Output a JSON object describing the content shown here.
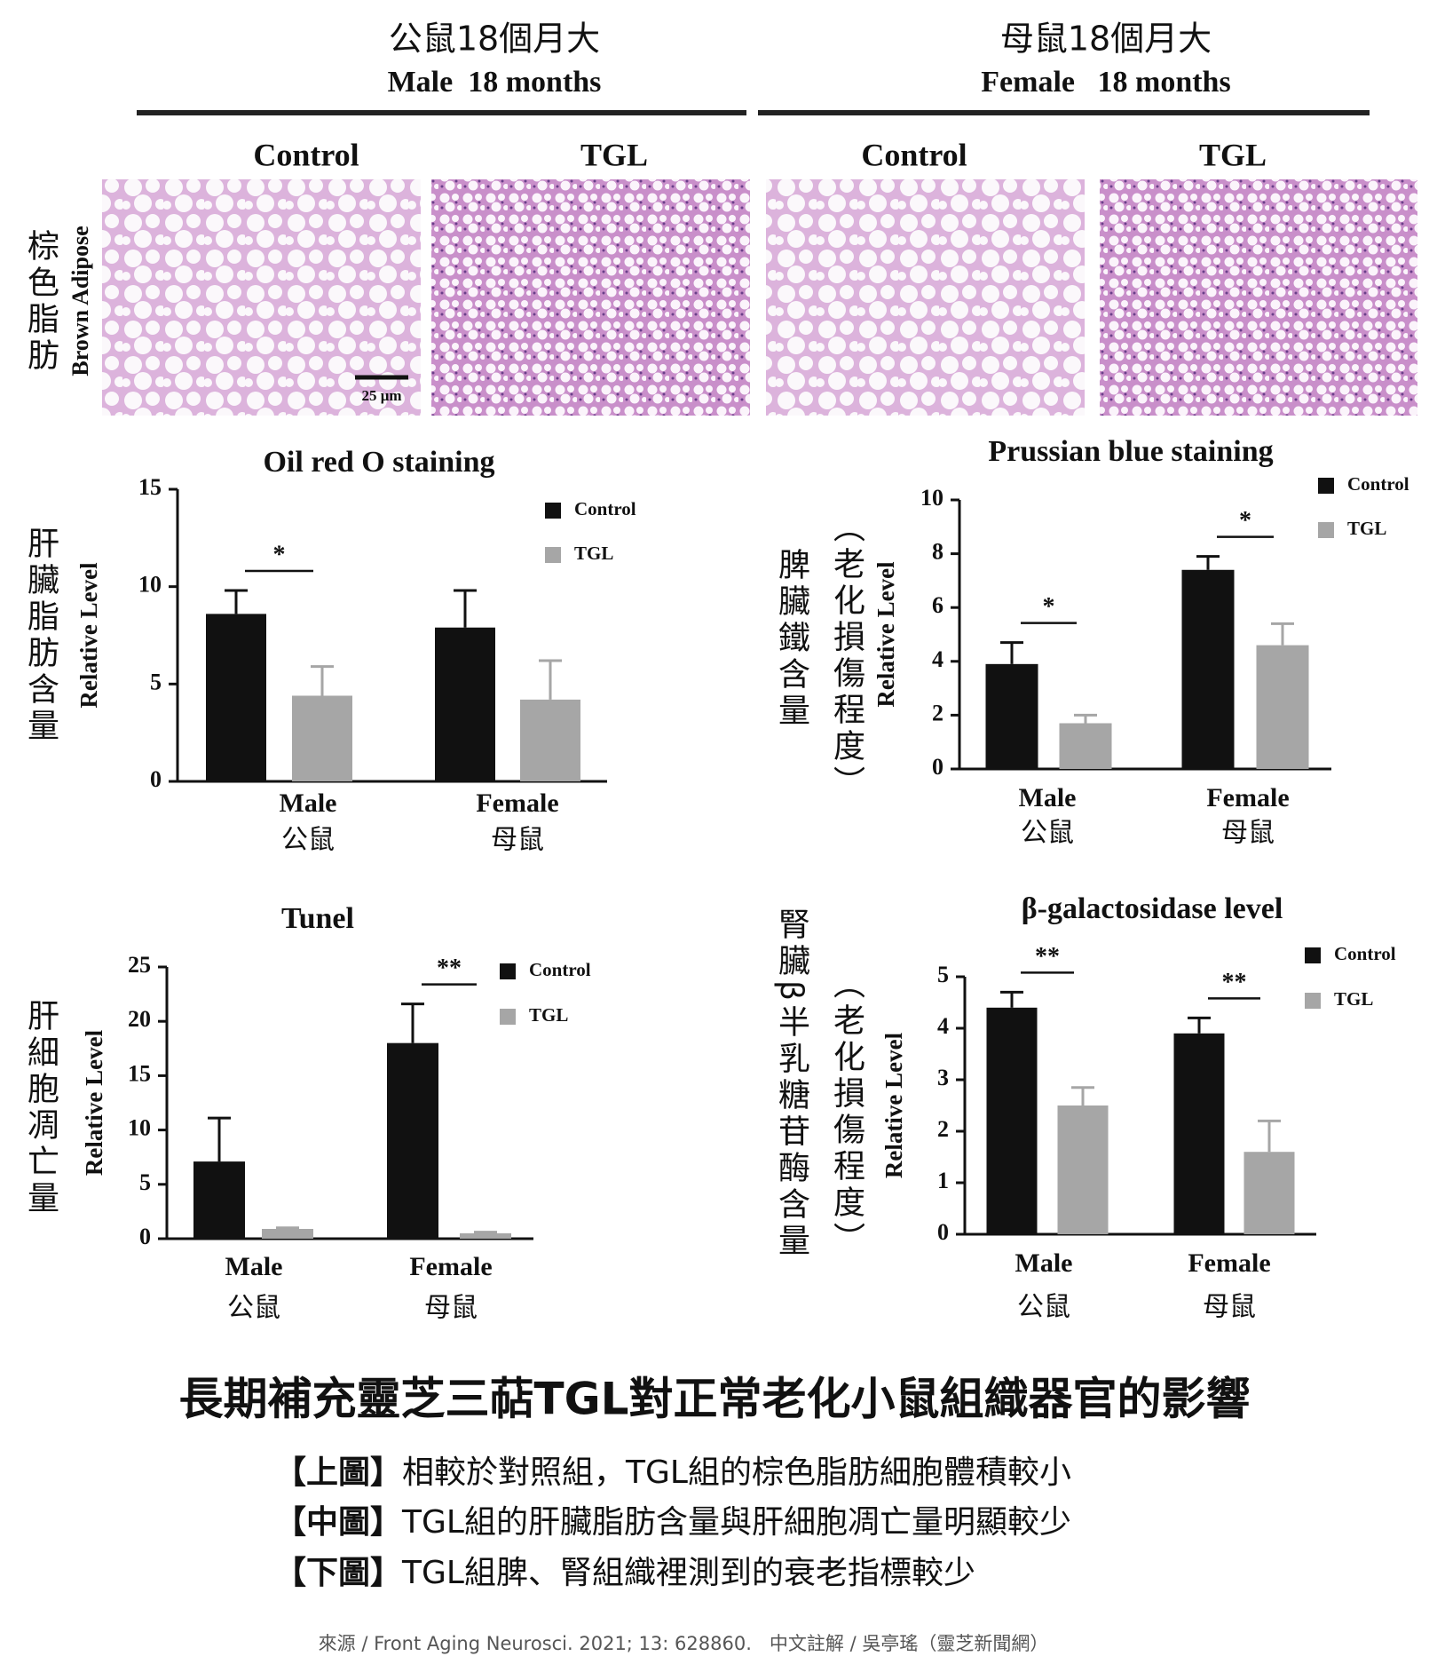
{
  "header": {
    "left": {
      "zh": "公鼠18個月大",
      "en": "Male  18 months",
      "groups": [
        "Control",
        "TGL"
      ]
    },
    "right": {
      "zh": "母鼠18個月大",
      "en": "Female   18 months",
      "groups": [
        "Control",
        "TGL"
      ]
    }
  },
  "histology": {
    "row_label": "棕色脂肪",
    "axis_label": "Brown Adipose",
    "scale_bar": "25 μm"
  },
  "chart_data": [
    {
      "type": "bar",
      "title": "Oil red O staining",
      "side_labels": [
        "肝臟脂肪含量"
      ],
      "ylabel": "Relative Level",
      "categories": [
        "Male",
        "Female"
      ],
      "categories_zh": [
        "公鼠",
        "母鼠"
      ],
      "series": [
        {
          "name": "Control",
          "color": "#111111",
          "values": [
            8.6,
            7.9
          ],
          "errors": [
            1.2,
            1.9
          ]
        },
        {
          "name": "TGL",
          "color": "#a6a6a6",
          "values": [
            4.4,
            4.2
          ],
          "errors": [
            1.5,
            2.0
          ]
        }
      ],
      "ylim": [
        0,
        15
      ],
      "yticks": [
        0,
        5,
        10,
        15
      ],
      "significance": [
        {
          "category": 0,
          "label": "*"
        }
      ]
    },
    {
      "type": "bar",
      "title": "Prussian blue staining",
      "side_labels": [
        "脾臟鐵含量",
        "（老化損傷程度）"
      ],
      "ylabel": "Relative Level",
      "categories": [
        "Male",
        "Female"
      ],
      "categories_zh": [
        "公鼠",
        "母鼠"
      ],
      "series": [
        {
          "name": "Control",
          "color": "#111111",
          "values": [
            3.9,
            7.4
          ],
          "errors": [
            0.8,
            0.5
          ]
        },
        {
          "name": "TGL",
          "color": "#a6a6a6",
          "values": [
            1.7,
            4.6
          ],
          "errors": [
            0.3,
            0.8
          ]
        }
      ],
      "ylim": [
        0,
        10
      ],
      "yticks": [
        0,
        2,
        4,
        6,
        8,
        10
      ],
      "significance": [
        {
          "category": 0,
          "label": "*"
        },
        {
          "category": 1,
          "label": "*"
        }
      ]
    },
    {
      "type": "bar",
      "title": "Tunel",
      "side_labels": [
        "肝細胞凋亡量"
      ],
      "ylabel": "Relative Level",
      "categories": [
        "Male",
        "Female"
      ],
      "categories_zh": [
        "公鼠",
        "母鼠"
      ],
      "series": [
        {
          "name": "Control",
          "color": "#111111",
          "values": [
            7.1,
            18
          ],
          "errors": [
            4.0,
            3.6
          ]
        },
        {
          "name": "TGL",
          "color": "#a6a6a6",
          "values": [
            0.9,
            0.5
          ],
          "errors": [
            0.1,
            0.1
          ]
        }
      ],
      "ylim": [
        0,
        25
      ],
      "yticks": [
        0,
        5,
        10,
        15,
        20,
        25
      ],
      "significance": [
        {
          "category": 1,
          "label": "**"
        }
      ]
    },
    {
      "type": "bar",
      "title": "β-galactosidase level",
      "side_labels": [
        "腎臟β半乳糖苷酶含量",
        "（老化損傷程度）"
      ],
      "ylabel": "Relative Level",
      "categories": [
        "Male",
        "Female"
      ],
      "categories_zh": [
        "公鼠",
        "母鼠"
      ],
      "series": [
        {
          "name": "Control",
          "color": "#111111",
          "values": [
            4.4,
            3.9
          ],
          "errors": [
            0.3,
            0.3
          ]
        },
        {
          "name": "TGL",
          "color": "#a6a6a6",
          "values": [
            2.5,
            1.6
          ],
          "errors": [
            0.35,
            0.6
          ]
        }
      ],
      "ylim": [
        0,
        5
      ],
      "yticks": [
        0,
        1,
        2,
        3,
        4,
        5
      ],
      "significance": [
        {
          "category": 0,
          "label": "**"
        },
        {
          "category": 1,
          "label": "**"
        }
      ]
    }
  ],
  "footer": {
    "title": "長期補充靈芝三萜TGL對正常老化小鼠組織器官的影響",
    "captions": [
      {
        "tag": "【上圖】",
        "text": "相較於對照組，TGL組的棕色脂肪細胞體積較小"
      },
      {
        "tag": "【中圖】",
        "text": "TGL組的肝臟脂肪含量與肝細胞凋亡量明顯較少"
      },
      {
        "tag": "【下圖】",
        "text": "TGL組脾、腎組織裡測到的衰老指標較少"
      }
    ],
    "source": "來源 / Front Aging Neurosci. 2021; 13: 628860.   中文註解 / 吳亭瑤（靈芝新聞網）"
  }
}
